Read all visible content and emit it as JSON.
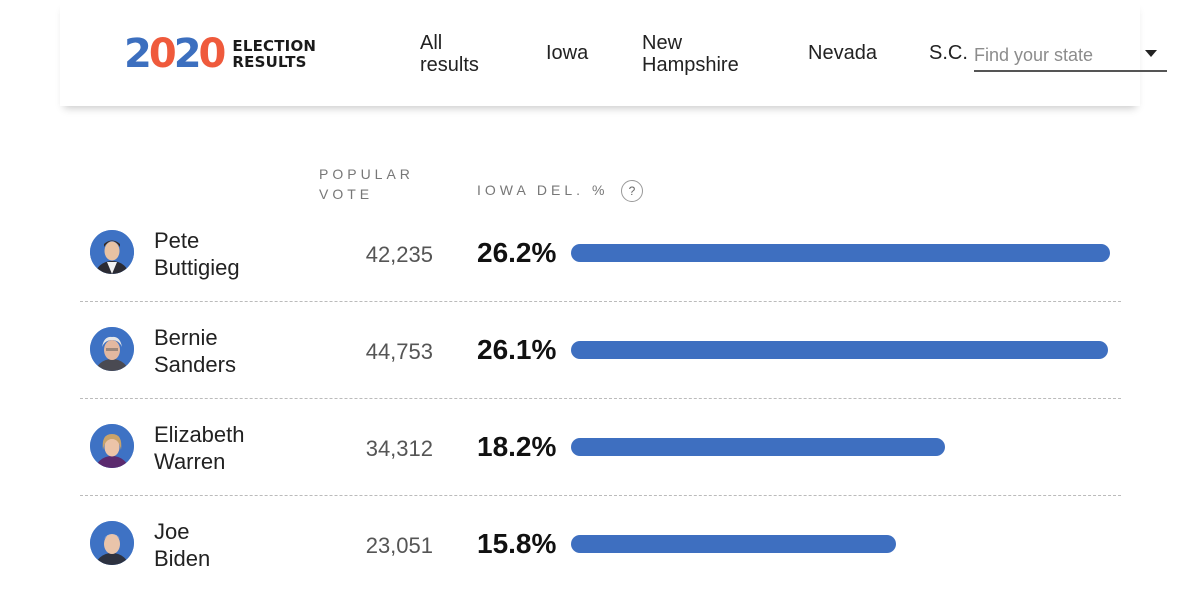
{
  "header": {
    "logo_year": [
      "2",
      "0",
      "2",
      "0"
    ],
    "logo_year_colors": [
      "#3c6fbf",
      "#ef5a3c",
      "#3c6fbf",
      "#ef5a3c"
    ],
    "logo_line1": "ELECTION",
    "logo_line2": "RESULTS",
    "nav": [
      "All results",
      "Iowa",
      "New Hampshire",
      "Nevada",
      "S.C."
    ],
    "state_placeholder": "Find your state"
  },
  "columns": {
    "popular_vote": "POPULAR VOTE",
    "delegates": "IOWA DEL. %",
    "help": "?"
  },
  "candidates": [
    {
      "first": "Pete",
      "last": "Buttigieg",
      "votes": "42,235",
      "pct_label": "26.2%",
      "pct": 26.2
    },
    {
      "first": "Bernie",
      "last": "Sanders",
      "votes": "44,753",
      "pct_label": "26.1%",
      "pct": 26.1
    },
    {
      "first": "Elizabeth",
      "last": "Warren",
      "votes": "34,312",
      "pct_label": "18.2%",
      "pct": 18.2
    },
    {
      "first": "Joe",
      "last": "Biden",
      "votes": "23,051",
      "pct_label": "15.8%",
      "pct": 15.8
    }
  ],
  "colors": {
    "bar": "#3e6fc0",
    "avatar_bg": "#3e72c4"
  }
}
